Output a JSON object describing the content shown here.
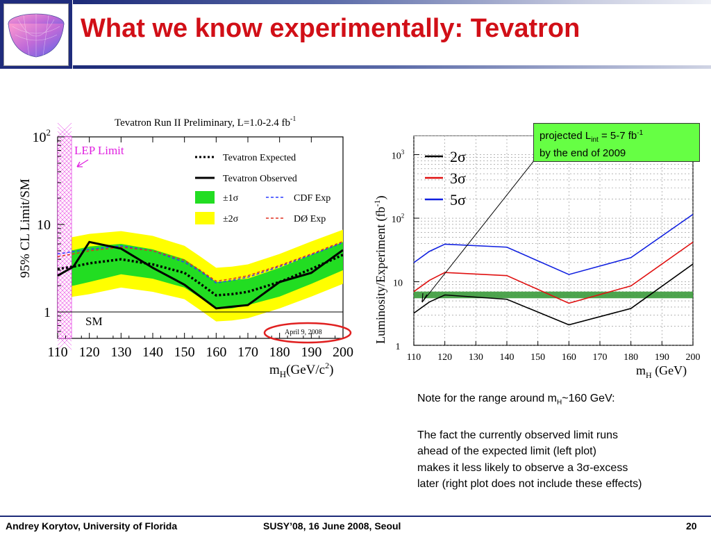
{
  "slide": {
    "title": "What we know experimentally: Tevatron",
    "footer_left": "Andrey Korytov, University of Florida",
    "footer_center": "SUSY’08, 16 June 2008, Seoul",
    "footer_page": "20"
  },
  "callout": {
    "line1_prefix": "projected L",
    "line1_sub": "int",
    "line1_mid": " = 5-7 fb",
    "line1_sup": "-1",
    "line2": "by the end of 2009"
  },
  "note": {
    "line1_prefix": "Note for the range around m",
    "line1_sub": "H",
    "line1_suffix": "~160 GeV:",
    "line2": "The fact the currently observed limit runs",
    "line3": "ahead of the expected limit (left plot)",
    "line4_prefix": "makes it less likely to observe a 3",
    "line4_sigma": "σ",
    "line4_suffix": "-excess",
    "line5": "later (right plot does not include these effects)"
  },
  "chart_data": [
    {
      "type": "line",
      "title": "Tevatron Run II Preliminary, L=1.0-2.4 fb",
      "title_sup": "-1",
      "ylabel": "95% CL Limit/SM",
      "xlabel_prefix": "m",
      "xlabel_sub": "H",
      "xlabel_suffix": "(GeV/c",
      "xlabel_sup": "2",
      "xlabel_close": ")",
      "xlim": [
        110,
        200
      ],
      "ylim": [
        0.5,
        100
      ],
      "y_scale": "log",
      "x_ticks": [
        110,
        120,
        130,
        140,
        150,
        160,
        170,
        180,
        190,
        200
      ],
      "y_ticks": [
        {
          "value": 1,
          "label": "1"
        },
        {
          "value": 10,
          "label": "10"
        },
        {
          "value": 100,
          "label": "10",
          "sup": "2"
        }
      ],
      "lep_limit_label": "LEP Limit",
      "lep_limit_range": [
        110,
        114.4
      ],
      "sm_label": "SM",
      "date_stamp": "April 9, 2008",
      "legend": [
        {
          "name": "Tevatron Expected",
          "style": "dotted-black"
        },
        {
          "name": "Tevatron Observed",
          "style": "solid-black"
        },
        {
          "name": "±1σ",
          "style": "band-green"
        },
        {
          "name": "±2σ",
          "style": "band-yellow"
        },
        {
          "name": "CDF Exp",
          "style": "dashed-blue"
        },
        {
          "name": "DØ Exp",
          "style": "dashed-red"
        }
      ],
      "x": [
        110,
        115,
        120,
        130,
        140,
        150,
        155,
        160,
        165,
        170,
        180,
        190,
        200
      ],
      "series": [
        {
          "name": "Tevatron Observed",
          "color": "#000000",
          "values": [
            2.6,
            3.3,
            6.3,
            5.3,
            3.2,
            2.05,
            1.5,
            1.1,
            1.15,
            1.2,
            2.2,
            2.8,
            5.1
          ]
        },
        {
          "name": "Tevatron Expected",
          "color": "#000000",
          "values": [
            3.1,
            3.3,
            3.6,
            4.0,
            3.5,
            2.8,
            2.1,
            1.55,
            1.6,
            1.7,
            2.2,
            3.1,
            4.5
          ]
        },
        {
          "name": "CDF Exp",
          "color": "#2a3cff",
          "values": [
            4.6,
            4.9,
            5.2,
            5.7,
            5.0,
            3.7,
            2.9,
            2.15,
            2.3,
            2.5,
            3.3,
            4.5,
            6.2
          ]
        },
        {
          "name": "DØ Exp",
          "color": "#e03020",
          "values": [
            4.3,
            4.6,
            5.0,
            5.5,
            5.0,
            3.9,
            3.0,
            2.25,
            2.4,
            2.6,
            3.4,
            4.6,
            6.4
          ]
        }
      ],
      "band_1sigma": {
        "lower": [
          1.9,
          2.0,
          2.2,
          2.7,
          2.4,
          1.9,
          1.45,
          1.08,
          1.1,
          1.2,
          1.5,
          2.1,
          3.0
        ],
        "upper": [
          4.8,
          5.1,
          5.6,
          6.0,
          5.2,
          4.0,
          3.0,
          2.2,
          2.3,
          2.4,
          3.2,
          4.5,
          6.3
        ]
      },
      "band_2sigma": {
        "lower": [
          1.4,
          1.5,
          1.6,
          1.9,
          1.7,
          1.4,
          1.05,
          0.78,
          0.8,
          0.85,
          1.1,
          1.5,
          2.1
        ],
        "upper": [
          6.7,
          7.2,
          7.8,
          8.4,
          7.4,
          5.7,
          4.3,
          3.2,
          3.3,
          3.5,
          4.6,
          6.4,
          8.7
        ]
      }
    },
    {
      "type": "line",
      "ylabel": "Luminosity/Experiment (fb",
      "ylabel_sup": "-1",
      "ylabel_close": ")",
      "xlabel_prefix": "m",
      "xlabel_sub": "H",
      "xlabel_suffix": " (GeV)",
      "xlim": [
        110,
        200
      ],
      "ylim": [
        1,
        2000
      ],
      "y_scale": "log",
      "x_ticks": [
        110,
        120,
        130,
        140,
        150,
        160,
        170,
        180,
        190,
        200
      ],
      "y_ticks": [
        {
          "value": 1,
          "label": "1"
        },
        {
          "value": 10,
          "label": "10"
        },
        {
          "value": 100,
          "label": "10",
          "sup": "2"
        },
        {
          "value": 1000,
          "label": "10",
          "sup": "3"
        }
      ],
      "legend": [
        {
          "name": "2σ",
          "color": "#000000"
        },
        {
          "name": "3σ",
          "color": "#e01010"
        },
        {
          "name": "5σ",
          "color": "#1020e0"
        }
      ],
      "luminosity_band": [
        5.5,
        7.0
      ],
      "x": [
        110,
        115,
        120,
        140,
        160,
        180,
        200
      ],
      "series": [
        {
          "name": "2σ",
          "color": "#000000",
          "values": [
            3.2,
            4.8,
            6.2,
            5.3,
            2.1,
            3.8,
            19
          ]
        },
        {
          "name": "3σ",
          "color": "#e01010",
          "values": [
            7.0,
            10.5,
            14,
            12.5,
            4.6,
            8.6,
            42
          ]
        },
        {
          "name": "5σ",
          "color": "#1020e0",
          "values": [
            20,
            30,
            39,
            35,
            13,
            24,
            115
          ]
        }
      ]
    }
  ]
}
